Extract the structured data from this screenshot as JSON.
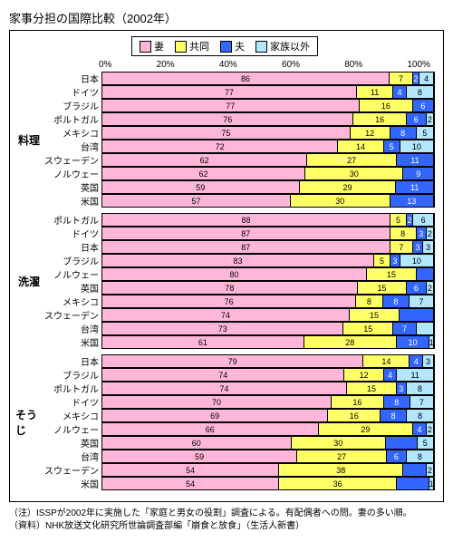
{
  "title": "家事分担の国際比較（2002年）",
  "legend": [
    {
      "label": "妻",
      "color": "#ffb6d9"
    },
    {
      "label": "共同",
      "color": "#ffff66"
    },
    {
      "label": "夫",
      "color": "#3366ff"
    },
    {
      "label": "家族以外",
      "color": "#b3e6ff"
    }
  ],
  "axis": {
    "ticks": [
      "0%",
      "20%",
      "40%",
      "60%",
      "80%",
      "100%"
    ]
  },
  "text_color_on_blue": "#ffffff",
  "groups": [
    {
      "label": "料理",
      "rows": [
        {
          "country": "日本",
          "v": [
            86,
            7,
            2,
            4
          ],
          "show": [
            86,
            7,
            2,
            4
          ]
        },
        {
          "country": "ドイツ",
          "v": [
            77,
            11,
            4,
            8
          ],
          "show": [
            77,
            11,
            4,
            8
          ]
        },
        {
          "country": "ブラジル",
          "v": [
            77,
            16,
            6,
            0
          ],
          "show": [
            77,
            16,
            6,
            null
          ]
        },
        {
          "country": "ポルトガル",
          "v": [
            76,
            16,
            6,
            2
          ],
          "show": [
            76,
            16,
            6,
            2
          ]
        },
        {
          "country": "メキシコ",
          "v": [
            75,
            12,
            8,
            5
          ],
          "show": [
            75,
            12,
            8,
            5
          ]
        },
        {
          "country": "台湾",
          "v": [
            72,
            14,
            5,
            10
          ],
          "show": [
            72,
            14,
            5,
            10
          ]
        },
        {
          "country": "スウェーデン",
          "v": [
            62,
            27,
            11,
            0
          ],
          "show": [
            62,
            27,
            11,
            null
          ]
        },
        {
          "country": "ノルウェー",
          "v": [
            62,
            30,
            9,
            0
          ],
          "show": [
            62,
            30,
            9,
            null
          ]
        },
        {
          "country": "英国",
          "v": [
            59,
            29,
            11,
            0
          ],
          "show": [
            59,
            29,
            11,
            null
          ]
        },
        {
          "country": "米国",
          "v": [
            57,
            30,
            13,
            0
          ],
          "show": [
            57,
            30,
            13,
            null
          ]
        }
      ]
    },
    {
      "label": "洗濯",
      "rows": [
        {
          "country": "ポルトガル",
          "v": [
            88,
            5,
            2,
            6
          ],
          "show": [
            88,
            5,
            2,
            6
          ]
        },
        {
          "country": "ドイツ",
          "v": [
            87,
            8,
            3,
            2
          ],
          "show": [
            87,
            8,
            3,
            2
          ]
        },
        {
          "country": "日本",
          "v": [
            87,
            7,
            3,
            3
          ],
          "show": [
            87,
            7,
            3,
            3
          ]
        },
        {
          "country": "ブラジル",
          "v": [
            83,
            5,
            3,
            10
          ],
          "show": [
            83,
            5,
            3,
            10
          ]
        },
        {
          "country": "ノルウェー",
          "v": [
            80,
            15,
            5,
            0
          ],
          "show": [
            80,
            15,
            null,
            null
          ]
        },
        {
          "country": "英国",
          "v": [
            78,
            15,
            6,
            2
          ],
          "show": [
            78,
            15,
            6,
            2
          ]
        },
        {
          "country": "メキシコ",
          "v": [
            76,
            8,
            8,
            7
          ],
          "show": [
            76,
            8,
            8,
            7
          ]
        },
        {
          "country": "スウェーデン",
          "v": [
            74,
            15,
            10,
            0
          ],
          "show": [
            74,
            15,
            null,
            null
          ]
        },
        {
          "country": "台湾",
          "v": [
            73,
            15,
            7,
            5
          ],
          "show": [
            73,
            15,
            7,
            null
          ]
        },
        {
          "country": "米国",
          "v": [
            61,
            28,
            10,
            1
          ],
          "show": [
            61,
            28,
            10,
            1
          ]
        }
      ]
    },
    {
      "label": "そうじ",
      "rows": [
        {
          "country": "日本",
          "v": [
            79,
            14,
            4,
            3
          ],
          "show": [
            79,
            14,
            4,
            3
          ]
        },
        {
          "country": "ブラジル",
          "v": [
            74,
            12,
            4,
            11
          ],
          "show": [
            74,
            12,
            4,
            11
          ]
        },
        {
          "country": "ポルトガル",
          "v": [
            74,
            15,
            3,
            8
          ],
          "show": [
            74,
            15,
            3,
            8
          ]
        },
        {
          "country": "ドイツ",
          "v": [
            70,
            16,
            8,
            7
          ],
          "show": [
            70,
            16,
            8,
            7
          ]
        },
        {
          "country": "メキシコ",
          "v": [
            69,
            16,
            8,
            8
          ],
          "show": [
            69,
            16,
            8,
            8
          ]
        },
        {
          "country": "ノルウェー",
          "v": [
            66,
            29,
            4,
            2
          ],
          "show": [
            66,
            29,
            4,
            2
          ]
        },
        {
          "country": "英国",
          "v": [
            60,
            30,
            10,
            5
          ],
          "show": [
            60,
            30,
            null,
            5
          ]
        },
        {
          "country": "台湾",
          "v": [
            59,
            27,
            6,
            8
          ],
          "show": [
            59,
            27,
            6,
            8
          ]
        },
        {
          "country": "スウェーデン",
          "v": [
            54,
            38,
            7,
            2
          ],
          "show": [
            54,
            38,
            null,
            2
          ]
        },
        {
          "country": "米国",
          "v": [
            54,
            36,
            10,
            1
          ],
          "show": [
            54,
            36,
            null,
            1
          ]
        }
      ]
    }
  ],
  "notes": [
    "（注）ISSPが2002年に実施した「家庭と男女の役割」調査による。有配偶者への問。妻の多い順。",
    "（資料）NHK放送文化研究所世論調査部編「崩食と放食」（生活人新書）"
  ]
}
